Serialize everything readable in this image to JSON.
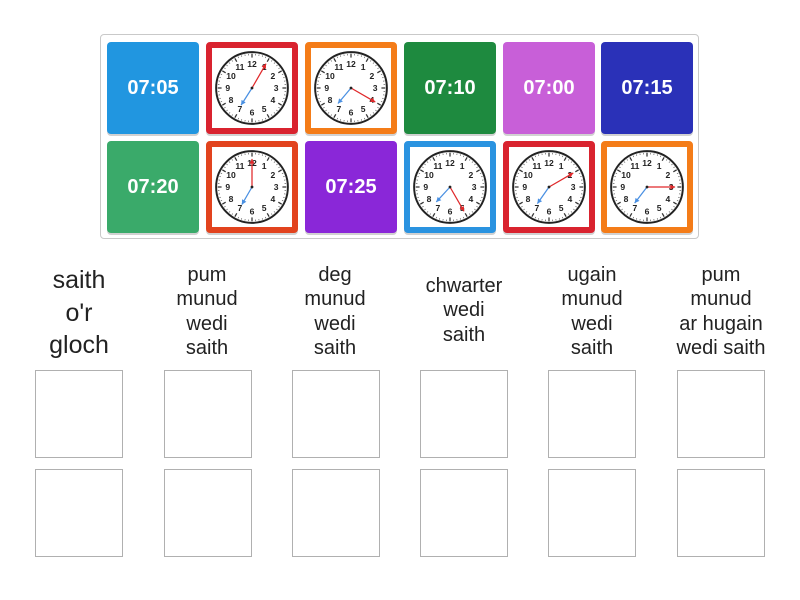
{
  "tiles": [
    {
      "kind": "text",
      "text": "07:05",
      "color": "#2196e0"
    },
    {
      "kind": "clock",
      "border": "#d9232f",
      "hour": 7,
      "minute": 5
    },
    {
      "kind": "clock",
      "border": "#f47c18",
      "hour": 7,
      "minute": 20
    },
    {
      "kind": "text",
      "text": "07:10",
      "color": "#1e8a3f"
    },
    {
      "kind": "text",
      "text": "07:00",
      "color": "#c85fd8"
    },
    {
      "kind": "text",
      "text": "07:15",
      "color": "#2a31b8"
    },
    {
      "kind": "text",
      "text": "07:20",
      "color": "#3aaa6a"
    },
    {
      "kind": "clock",
      "border": "#e2431e",
      "hour": 7,
      "minute": 0
    },
    {
      "kind": "text",
      "text": "07:25",
      "color": "#8a27d8"
    },
    {
      "kind": "clock",
      "border": "#2a93e0",
      "hour": 7,
      "minute": 25
    },
    {
      "kind": "clock",
      "border": "#d9232f",
      "hour": 7,
      "minute": 10
    },
    {
      "kind": "clock",
      "border": "#f47c18",
      "hour": 7,
      "minute": 15
    }
  ],
  "clock_face": {
    "numbers": [
      "12",
      "1",
      "2",
      "3",
      "4",
      "5",
      "6",
      "7",
      "8",
      "9",
      "10",
      "11"
    ],
    "hour_hand_color": "#4a90e2",
    "minute_hand_color": "#e0282a"
  },
  "categories": [
    {
      "label": "saith\no'r\ngloch"
    },
    {
      "label": "pum\nmunud\nwedi\nsaith"
    },
    {
      "label": "deg\nmunud\nwedi\nsaith"
    },
    {
      "label": "chwarter\nwedi\nsaith"
    },
    {
      "label": "ugain\nmunud\nwedi\nsaith"
    },
    {
      "label": "pum\nmunud\nar hugain\nwedi saith"
    }
  ]
}
